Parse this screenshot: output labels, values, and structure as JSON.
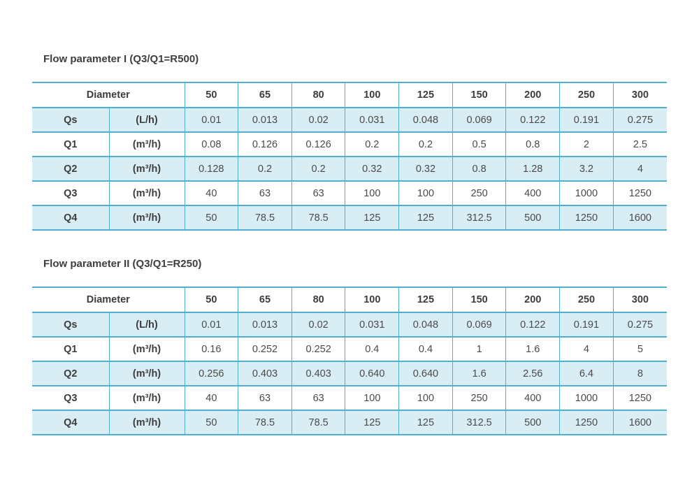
{
  "colors": {
    "page_background": "#ffffff",
    "table_border": "#4fafce",
    "row_fill": "#d9edf4",
    "title_text": "#3e3e42",
    "header_text": "#3d3d3d",
    "value_text": "#4a4a4a"
  },
  "tables": [
    {
      "title": "Flow parameter I (Q3/Q1=R500)",
      "corner_label": "Diameter",
      "diameters": [
        "50",
        "65",
        "80",
        "100",
        "125",
        "150",
        "200",
        "250",
        "300"
      ],
      "rows": [
        {
          "param": "Qs",
          "unit": "(L/h)",
          "values": [
            "0.01",
            "0.013",
            "0.02",
            "0.031",
            "0.048",
            "0.069",
            "0.122",
            "0.191",
            "0.275"
          ]
        },
        {
          "param": "Q1",
          "unit": "(m³/h)",
          "values": [
            "0.08",
            "0.126",
            "0.126",
            "0.2",
            "0.2",
            "0.5",
            "0.8",
            "2",
            "2.5"
          ]
        },
        {
          "param": "Q2",
          "unit": "(m³/h)",
          "values": [
            "0.128",
            "0.2",
            "0.2",
            "0.32",
            "0.32",
            "0.8",
            "1.28",
            "3.2",
            "4"
          ]
        },
        {
          "param": "Q3",
          "unit": "(m³/h)",
          "values": [
            "40",
            "63",
            "63",
            "100",
            "100",
            "250",
            "400",
            "1000",
            "1250"
          ]
        },
        {
          "param": "Q4",
          "unit": "(m³/h)",
          "values": [
            "50",
            "78.5",
            "78.5",
            "125",
            "125",
            "312.5",
            "500",
            "1250",
            "1600"
          ]
        }
      ]
    },
    {
      "title": "Flow parameter II (Q3/Q1=R250)",
      "corner_label": "Diameter",
      "diameters": [
        "50",
        "65",
        "80",
        "100",
        "125",
        "150",
        "200",
        "250",
        "300"
      ],
      "rows": [
        {
          "param": "Qs",
          "unit": "(L/h)",
          "values": [
            "0.01",
            "0.013",
            "0.02",
            "0.031",
            "0.048",
            "0.069",
            "0.122",
            "0.191",
            "0.275"
          ]
        },
        {
          "param": "Q1",
          "unit": "(m³/h)",
          "values": [
            "0.16",
            "0.252",
            "0.252",
            "0.4",
            "0.4",
            "1",
            "1.6",
            "4",
            "5"
          ]
        },
        {
          "param": "Q2",
          "unit": "(m³/h)",
          "values": [
            "0.256",
            "0.403",
            "0.403",
            "0.640",
            "0.640",
            "1.6",
            "2.56",
            "6.4",
            "8"
          ]
        },
        {
          "param": "Q3",
          "unit": "(m³/h)",
          "values": [
            "40",
            "63",
            "63",
            "100",
            "100",
            "250",
            "400",
            "1000",
            "1250"
          ]
        },
        {
          "param": "Q4",
          "unit": "(m³/h)",
          "values": [
            "50",
            "78.5",
            "78.5",
            "125",
            "125",
            "312.5",
            "500",
            "1250",
            "1600"
          ]
        }
      ]
    }
  ]
}
